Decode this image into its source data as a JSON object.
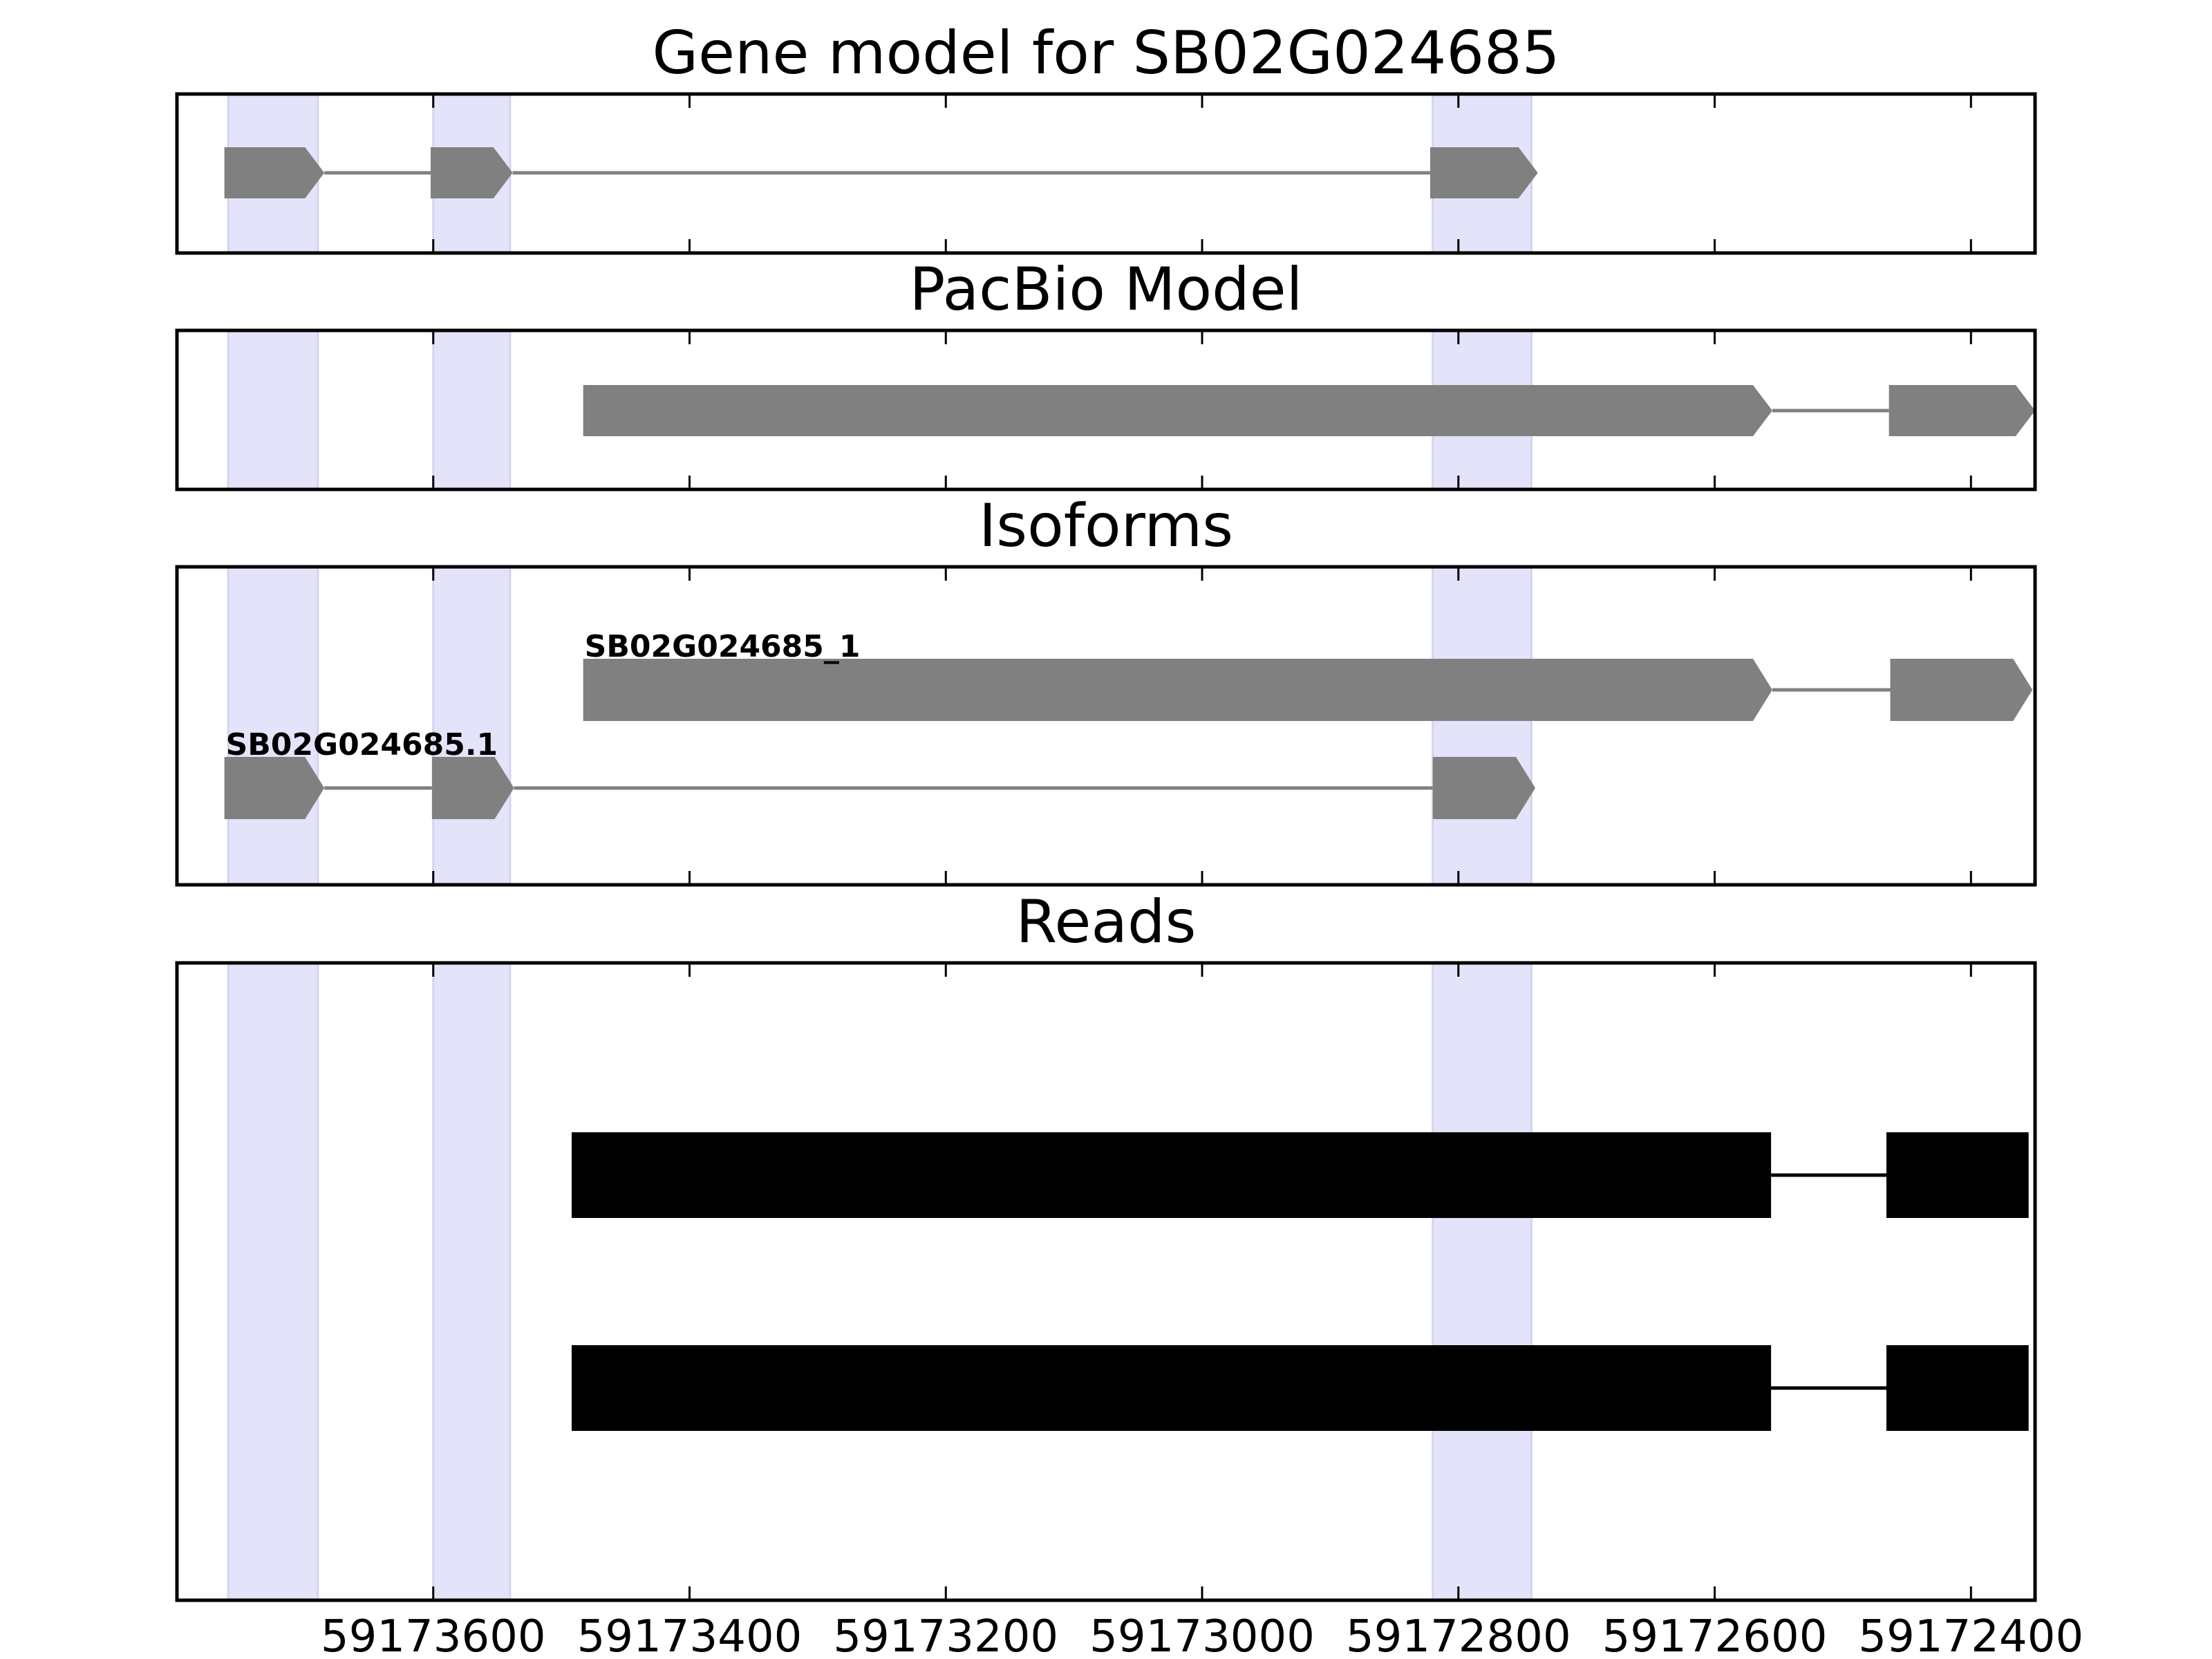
{
  "chart_data": {
    "type": "gene-structure",
    "x_axis": {
      "reversed": true,
      "xlim": [
        59173800,
        59172350
      ],
      "ticks": [
        59173600,
        59173400,
        59173200,
        59173000,
        59172800,
        59172600,
        59172400
      ],
      "tick_labels": [
        "59173600",
        "59173400",
        "59173200",
        "59173000",
        "59172800",
        "59172600",
        "59172400"
      ]
    },
    "highlight_color": "#e3e3fa",
    "highlights": [
      [
        59173760,
        59173690
      ],
      [
        59173600,
        59173540
      ],
      [
        59172820,
        59172743
      ]
    ],
    "panels": [
      {
        "id": "gene-model",
        "title": "Gene model for SB02G024685",
        "tracks": [
          {
            "label": "",
            "color": "#808080",
            "exons": [
              [
                59173763,
                59173685
              ],
              [
                59173602,
                59173538
              ],
              [
                59172822,
                59172738
              ]
            ]
          }
        ]
      },
      {
        "id": "pacbio",
        "title": "PacBio Model",
        "tracks": [
          {
            "label": "",
            "color": "#808080",
            "exons": [
              [
                59173483,
                59172555
              ],
              [
                59172464,
                59172350
              ]
            ]
          }
        ]
      },
      {
        "id": "isoforms",
        "title": "Isoforms",
        "tracks": [
          {
            "label": "SB02G024685_1",
            "color": "#808080",
            "exons": [
              [
                59173483,
                59172555
              ],
              [
                59172463,
                59172352
              ]
            ]
          },
          {
            "label": "SB02G024685.1",
            "color": "#808080",
            "exons": [
              [
                59173763,
                59173685
              ],
              [
                59173601,
                59173537
              ],
              [
                59172820,
                59172740
              ]
            ]
          }
        ]
      },
      {
        "id": "reads",
        "title": "Reads",
        "tracks": [
          {
            "label": "",
            "color": "#000000",
            "exons": [
              [
                59173492,
                59172556
              ],
              [
                59172466,
                59172355
              ]
            ]
          },
          {
            "label": "",
            "color": "#000000",
            "exons": [
              [
                59173492,
                59172556
              ],
              [
                59172466,
                59172355
              ]
            ]
          }
        ]
      }
    ]
  }
}
